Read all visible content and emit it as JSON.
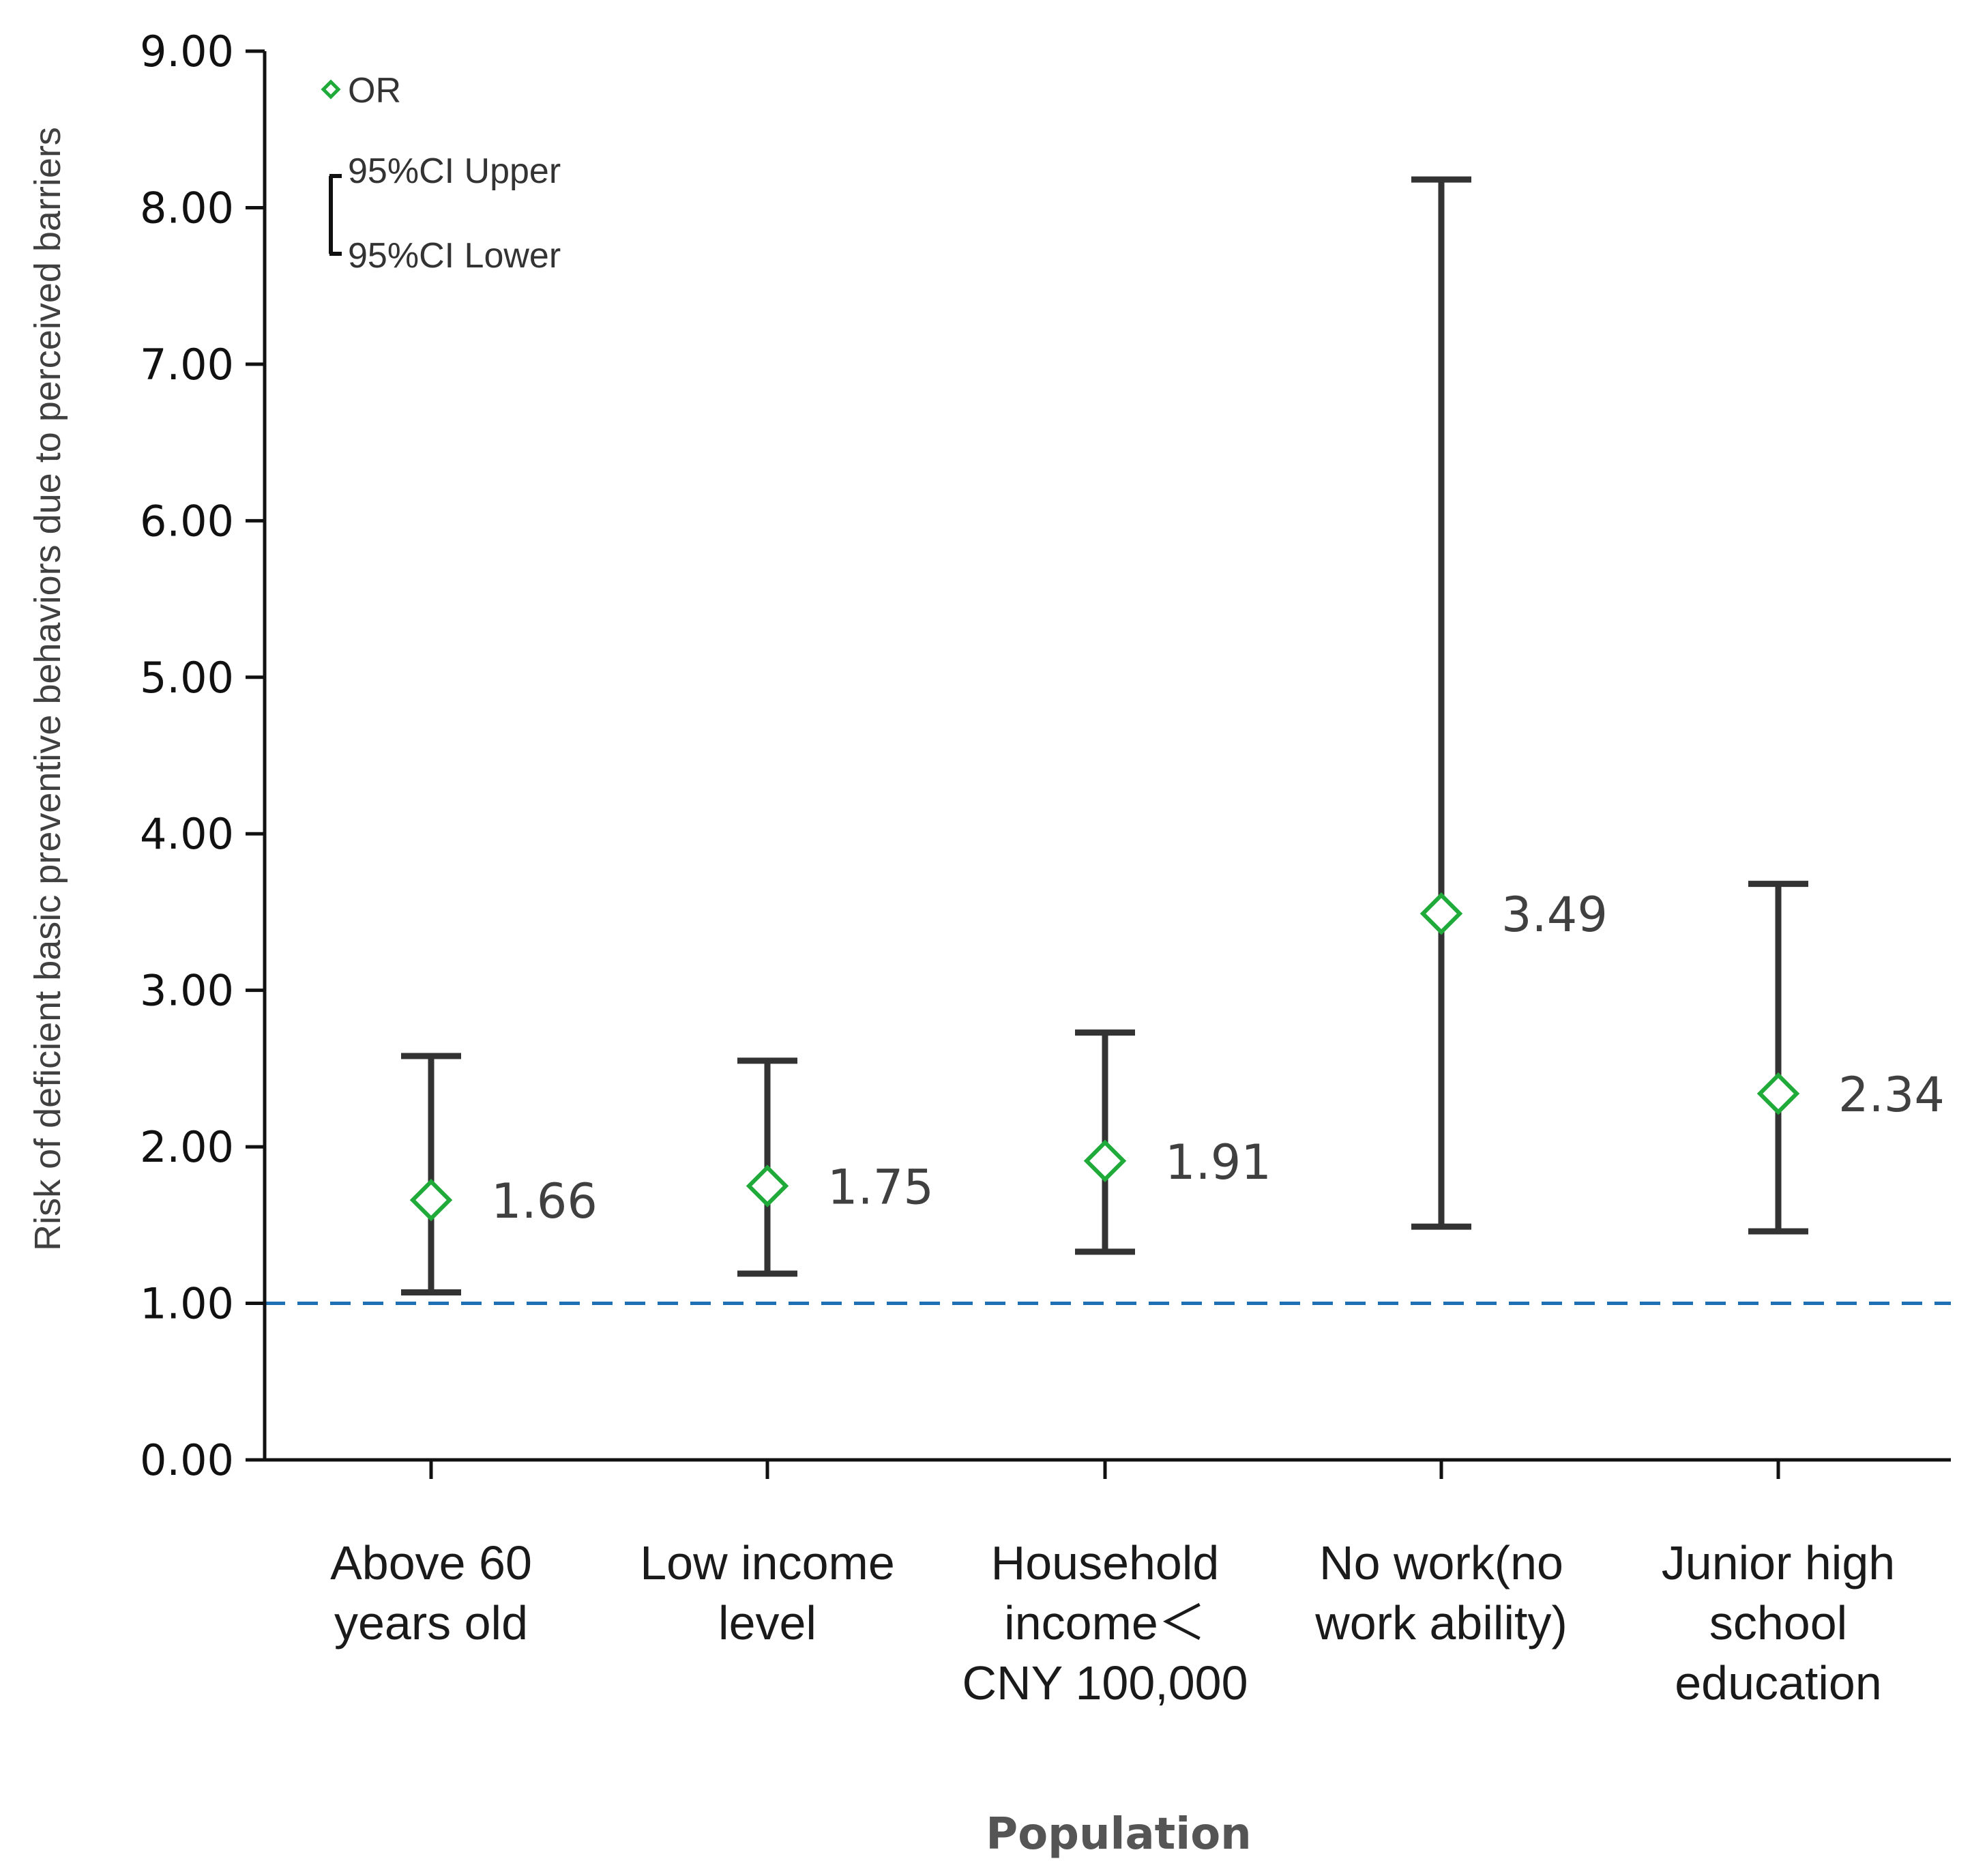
{
  "chart_data": {
    "type": "errorbar",
    "title": "",
    "xlabel": "Population",
    "ylabel": "Risk of deficient basic preventive behaviors due to perceived barriers",
    "ylim": [
      0,
      9
    ],
    "yticks": [
      "0.00",
      "1.00",
      "2.00",
      "3.00",
      "4.00",
      "5.00",
      "6.00",
      "7.00",
      "8.00",
      "9.00"
    ],
    "reference_line": 1.0,
    "categories": [
      [
        "Above 60",
        "years old"
      ],
      [
        "Low income",
        "level"
      ],
      [
        "Household",
        "income＜",
        "CNY 100,000"
      ],
      [
        "No work(no",
        "work ability)"
      ],
      [
        "Junior high",
        "school",
        "education"
      ]
    ],
    "or": [
      1.66,
      1.75,
      1.91,
      3.49,
      2.34
    ],
    "or_labels": [
      "1.66",
      "1.75",
      "1.91",
      "3.49",
      "2.34"
    ],
    "ci_lower": [
      1.07,
      1.19,
      1.33,
      1.49,
      1.46
    ],
    "ci_upper": [
      2.58,
      2.55,
      2.73,
      8.18,
      3.68
    ],
    "legend": {
      "or": "OR",
      "upper": "95%CI Upper",
      "lower": "95%CI Lower"
    },
    "colors": {
      "marker": "#1faa3a",
      "errorbar": "#333333",
      "reference": "#1f6fb5",
      "axis": "#111111"
    }
  }
}
